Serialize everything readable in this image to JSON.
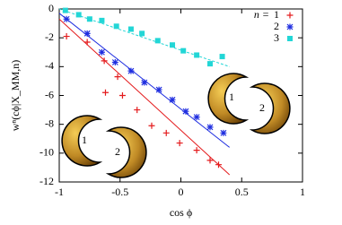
{
  "chart_data": {
    "type": "scatter",
    "xlabel": "cos ϕ",
    "ylabel": "wⁿ(cϕ|X_MM,n)",
    "xlim": [
      -1,
      1
    ],
    "ylim": [
      -12,
      0
    ],
    "xticks": [
      -1,
      -0.5,
      0,
      0.5,
      1
    ],
    "yticks": [
      0,
      -2,
      -4,
      -6,
      -8,
      -10,
      -12
    ],
    "legend_title": "n =",
    "legend": "top-right",
    "series": [
      {
        "name": "1",
        "color": "#e41a1c",
        "marker": "+",
        "x": [
          -0.94,
          -0.77,
          -0.63,
          -0.52,
          -0.62,
          -0.48,
          -0.36,
          -0.24,
          -0.12,
          -0.01,
          0.13,
          0.24,
          0.31
        ],
        "values": [
          -1.9,
          -2.3,
          -3.6,
          -4.7,
          -5.8,
          -6.0,
          -7.0,
          -8.1,
          -8.6,
          -9.3,
          -9.8,
          -10.5,
          -10.8
        ]
      },
      {
        "name": "2",
        "color": "#1f2ee0",
        "marker": "*",
        "x": [
          -0.94,
          -0.77,
          -0.65,
          -0.54,
          -0.41,
          -0.3,
          -0.18,
          -0.07,
          0.04,
          0.13,
          0.24,
          0.35
        ],
        "values": [
          -0.7,
          -1.7,
          -3.0,
          -3.7,
          -4.3,
          -5.1,
          -5.6,
          -6.3,
          -7.1,
          -7.5,
          -8.2,
          -8.6
        ]
      },
      {
        "name": "3",
        "color": "#22d6d6",
        "marker": "square",
        "x": [
          -0.95,
          -0.84,
          -0.75,
          -0.65,
          -0.53,
          -0.41,
          -0.32,
          -0.19,
          -0.07,
          0.02,
          0.13,
          0.24,
          0.34
        ],
        "values": [
          -0.1,
          -0.4,
          -0.7,
          -0.8,
          -1.2,
          -1.4,
          -1.7,
          -2.2,
          -2.5,
          -2.9,
          -3.2,
          -3.8,
          -3.3
        ]
      }
    ],
    "fit_lines": [
      {
        "color": "#e41a1c",
        "x": [
          -1,
          0.4
        ],
        "values": [
          -0.7,
          -11.5
        ]
      },
      {
        "color": "#1f2ee0",
        "x": [
          -1,
          0.4
        ],
        "values": [
          -0.3,
          -9.6
        ]
      },
      {
        "color": "#22d6d6",
        "x": [
          -1,
          0.4
        ],
        "values": [
          0,
          -4.0
        ]
      }
    ],
    "illustrations": [
      {
        "labels": [
          "1",
          "2"
        ]
      },
      {
        "labels": [
          "1",
          "2"
        ]
      }
    ]
  }
}
